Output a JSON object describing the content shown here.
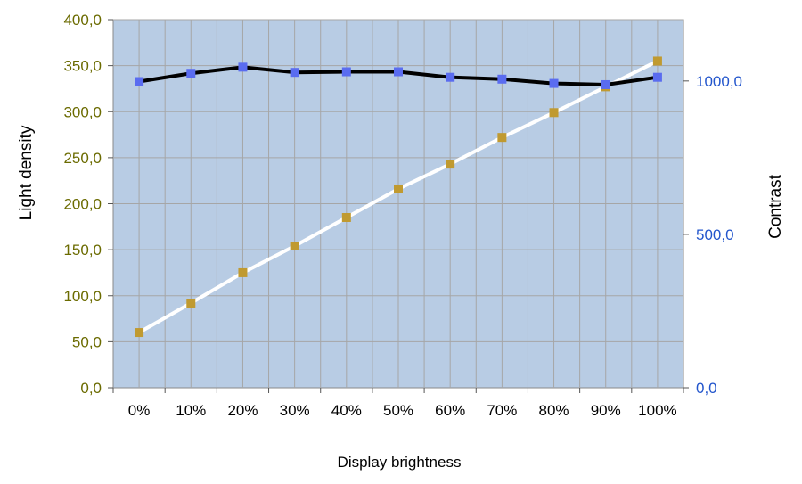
{
  "chart_data": {
    "type": "line",
    "xlabel": "Display brightness",
    "ylabel_left": "Light density",
    "ylabel_right": "Contrast",
    "categories": [
      "0%",
      "10%",
      "20%",
      "30%",
      "40%",
      "50%",
      "60%",
      "70%",
      "80%",
      "90%",
      "100%"
    ],
    "ylim_left": [
      0,
      400
    ],
    "ylim_right": [
      0,
      1200
    ],
    "yticks_left": [
      "0,0",
      "50,0",
      "100,0",
      "150,0",
      "200,0",
      "250,0",
      "300,0",
      "350,0",
      "400,0"
    ],
    "yticks_right": [
      "0,0",
      "500,0",
      "1000,0"
    ],
    "grid": true,
    "legend": "none",
    "series": [
      {
        "axis": "right",
        "values": [
          998,
          1025,
          1045,
          1028,
          1030,
          1030,
          1012,
          1006,
          992,
          988,
          1012
        ],
        "line_color": "#000000",
        "marker_color": "#5a6cf0"
      },
      {
        "axis": "left",
        "values": [
          60,
          92,
          125,
          154,
          185,
          216,
          243,
          272,
          299,
          327,
          355
        ],
        "line_color": "#ffffff",
        "marker_color": "#c09a30"
      }
    ],
    "colors": {
      "plot_background": "#b8cce4",
      "grid": "#a6a6a6",
      "left_tick_text": "#6b6b00",
      "right_tick_text": "#2255cc"
    }
  }
}
